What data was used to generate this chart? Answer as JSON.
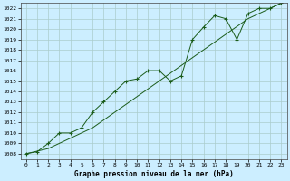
{
  "title": "Graphe pression niveau de la mer (hPa)",
  "background_color": "#cceeff",
  "grid_color": "#aacccc",
  "line_color": "#1a5c1a",
  "xlim": [
    -0.5,
    23.5
  ],
  "ylim": [
    1007.5,
    1022.5
  ],
  "yticks": [
    1008,
    1009,
    1010,
    1011,
    1012,
    1013,
    1014,
    1015,
    1016,
    1017,
    1018,
    1019,
    1020,
    1021,
    1022
  ],
  "xticks": [
    0,
    1,
    2,
    3,
    4,
    5,
    6,
    7,
    8,
    9,
    10,
    11,
    12,
    13,
    14,
    15,
    16,
    17,
    18,
    19,
    20,
    21,
    22,
    23
  ],
  "series1_x": [
    0,
    1,
    2,
    3,
    4,
    5,
    6,
    7,
    8,
    9,
    10,
    11,
    12,
    13,
    14,
    15,
    16,
    17,
    18,
    19,
    20,
    21,
    22,
    23
  ],
  "series1_y": [
    1008.0,
    1008.2,
    1009.0,
    1010.0,
    1010.0,
    1010.5,
    1012.0,
    1013.0,
    1014.0,
    1015.0,
    1015.2,
    1016.0,
    1016.0,
    1015.0,
    1015.5,
    1019.0,
    1020.2,
    1021.3,
    1021.0,
    1019.0,
    1021.5,
    1022.0,
    1022.0,
    1022.5
  ],
  "series2_x": [
    0,
    2,
    4,
    6,
    8,
    10,
    12,
    14,
    16,
    18,
    20,
    22,
    23
  ],
  "series2_y": [
    1008.0,
    1008.5,
    1009.5,
    1010.5,
    1012.0,
    1013.5,
    1015.0,
    1016.5,
    1018.0,
    1019.5,
    1021.0,
    1022.0,
    1022.5
  ]
}
